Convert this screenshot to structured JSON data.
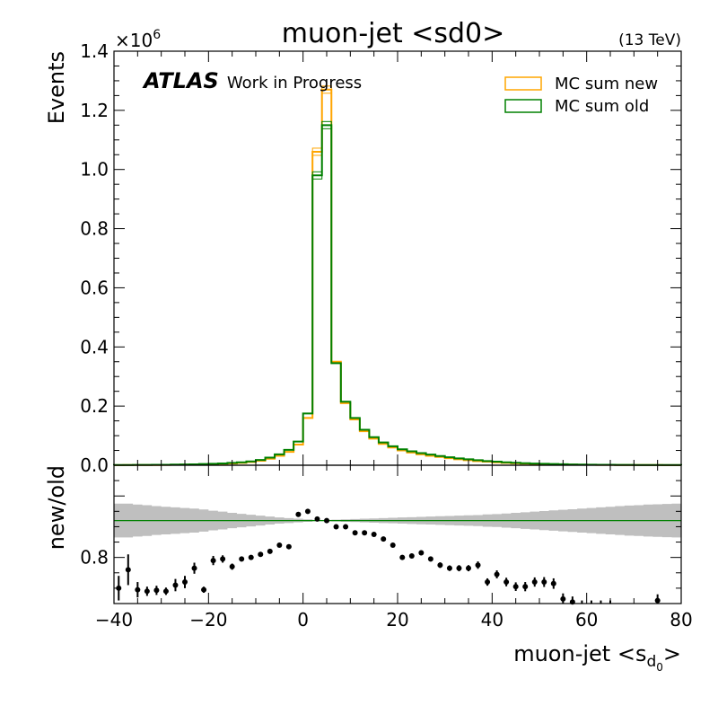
{
  "chart_data": {
    "type": "histogram-ratio",
    "title": "muon-jet <sd0>",
    "energy_label": "(13 TeV)",
    "atlas_label": "ATLAS",
    "atlas_sublabel": "Work in Progress",
    "xlabel": "muon-jet <s",
    "xlabel_sub": "d",
    "xlabel_subsub": "0",
    "xlabel_close": ">",
    "xlim": [
      -40,
      80
    ],
    "bin_width": 2,
    "x_ticks": [
      "−40",
      "−20",
      "0",
      "20",
      "40",
      "60",
      "80"
    ],
    "main": {
      "ylabel": "Events",
      "ylim": [
        0,
        1.4
      ],
      "scale_label": "×10",
      "scale_exp": "6",
      "y_ticks": [
        "0.0",
        "0.2",
        "0.4",
        "0.6",
        "0.8",
        "1.0",
        "1.2",
        "1.4"
      ],
      "legend_position": "top-right",
      "series": [
        {
          "name": "MC sum new",
          "color": "#ffa500",
          "values": [
            0.0005,
            0.0006,
            0.0007,
            0.0008,
            0.0009,
            0.001,
            0.0015,
            0.002,
            0.0025,
            0.003,
            0.004,
            0.005,
            0.006,
            0.008,
            0.011,
            0.015,
            0.022,
            0.032,
            0.045,
            0.07,
            0.16,
            1.06,
            1.27,
            0.35,
            0.21,
            0.155,
            0.115,
            0.09,
            0.072,
            0.06,
            0.05,
            0.043,
            0.037,
            0.032,
            0.028,
            0.024,
            0.02,
            0.017,
            0.014,
            0.012,
            0.01,
            0.008,
            0.0065,
            0.0055,
            0.0045,
            0.0037,
            0.003,
            0.0025,
            0.002,
            0.0017,
            0.0014,
            0.0012,
            0.001,
            0.0009,
            0.0008,
            0.0007,
            0.0006,
            0.0006,
            0.0005,
            0.0005
          ]
        },
        {
          "name": "MC sum old",
          "color": "#008000",
          "values": [
            0.0007,
            0.0008,
            0.001,
            0.0012,
            0.0014,
            0.0017,
            0.0021,
            0.0026,
            0.0032,
            0.004,
            0.005,
            0.006,
            0.008,
            0.01,
            0.013,
            0.018,
            0.026,
            0.037,
            0.052,
            0.08,
            0.175,
            0.98,
            1.15,
            0.345,
            0.215,
            0.16,
            0.12,
            0.095,
            0.077,
            0.064,
            0.054,
            0.047,
            0.041,
            0.036,
            0.031,
            0.027,
            0.023,
            0.02,
            0.017,
            0.014,
            0.012,
            0.01,
            0.0083,
            0.007,
            0.0058,
            0.0048,
            0.004,
            0.0033,
            0.0027,
            0.0023,
            0.0019,
            0.0016,
            0.0014,
            0.0012,
            0.001,
            0.0009,
            0.0008,
            0.0007,
            0.0006,
            0.0006
          ]
        }
      ]
    },
    "ratio": {
      "ylabel": "new/old",
      "ylim": [
        0.65,
        1.1
      ],
      "y_ticks": [
        0.8
      ],
      "y_tick_labels": [
        "0.8"
      ],
      "reference_line": 0.92,
      "reference_color": "#008000",
      "band_color": "#bfbfbf",
      "band_halfwidth": [
        0.055,
        0.055,
        0.052,
        0.05,
        0.047,
        0.045,
        0.043,
        0.041,
        0.039,
        0.036,
        0.032,
        0.029,
        0.025,
        0.022,
        0.019,
        0.016,
        0.013,
        0.01,
        0.008,
        0.006,
        0.004,
        0.002,
        0.002,
        0.003,
        0.004,
        0.005,
        0.006,
        0.007,
        0.008,
        0.009,
        0.01,
        0.011,
        0.012,
        0.013,
        0.014,
        0.015,
        0.016,
        0.017,
        0.018,
        0.02,
        0.021,
        0.023,
        0.025,
        0.027,
        0.029,
        0.031,
        0.033,
        0.035,
        0.037,
        0.039,
        0.041,
        0.043,
        0.045,
        0.047,
        0.049,
        0.05,
        0.052,
        0.053,
        0.054,
        0.055
      ],
      "points": [
        {
          "x": -39,
          "y": 0.7,
          "err": 0.04
        },
        {
          "x": -37,
          "y": 0.76,
          "err": 0.05
        },
        {
          "x": -35,
          "y": 0.695,
          "err": 0.025
        },
        {
          "x": -33,
          "y": 0.69,
          "err": 0.015
        },
        {
          "x": -31,
          "y": 0.693,
          "err": 0.015
        },
        {
          "x": -29,
          "y": 0.69,
          "err": 0.012
        },
        {
          "x": -27,
          "y": 0.71,
          "err": 0.02
        },
        {
          "x": -25,
          "y": 0.72,
          "err": 0.02
        },
        {
          "x": -23,
          "y": 0.765,
          "err": 0.018
        },
        {
          "x": -21,
          "y": 0.695,
          "err": 0.01
        },
        {
          "x": -19,
          "y": 0.79,
          "err": 0.015
        },
        {
          "x": -17,
          "y": 0.795,
          "err": 0.012
        },
        {
          "x": -15,
          "y": 0.77,
          "err": 0.01
        },
        {
          "x": -13,
          "y": 0.795,
          "err": 0.008
        },
        {
          "x": -11,
          "y": 0.8,
          "err": 0.007
        },
        {
          "x": -9,
          "y": 0.81,
          "err": 0.006
        },
        {
          "x": -7,
          "y": 0.82,
          "err": 0.005
        },
        {
          "x": -5,
          "y": 0.84,
          "err": 0.004
        },
        {
          "x": -3,
          "y": 0.835,
          "err": 0.003
        },
        {
          "x": -1,
          "y": 0.94,
          "err": 0.002
        },
        {
          "x": 1,
          "y": 0.95,
          "err": 0.002
        },
        {
          "x": 3,
          "y": 0.925,
          "err": 0.002
        },
        {
          "x": 5,
          "y": 0.92,
          "err": 0.003
        },
        {
          "x": 7,
          "y": 0.9,
          "err": 0.003
        },
        {
          "x": 9,
          "y": 0.9,
          "err": 0.004
        },
        {
          "x": 11,
          "y": 0.88,
          "err": 0.004
        },
        {
          "x": 13,
          "y": 0.88,
          "err": 0.005
        },
        {
          "x": 15,
          "y": 0.875,
          "err": 0.005
        },
        {
          "x": 17,
          "y": 0.86,
          "err": 0.006
        },
        {
          "x": 19,
          "y": 0.84,
          "err": 0.006
        },
        {
          "x": 21,
          "y": 0.8,
          "err": 0.007
        },
        {
          "x": 23,
          "y": 0.805,
          "err": 0.007
        },
        {
          "x": 25,
          "y": 0.815,
          "err": 0.008
        },
        {
          "x": 27,
          "y": 0.795,
          "err": 0.008
        },
        {
          "x": 29,
          "y": 0.775,
          "err": 0.009
        },
        {
          "x": 31,
          "y": 0.765,
          "err": 0.009
        },
        {
          "x": 33,
          "y": 0.765,
          "err": 0.01
        },
        {
          "x": 35,
          "y": 0.765,
          "err": 0.01
        },
        {
          "x": 37,
          "y": 0.775,
          "err": 0.012
        },
        {
          "x": 39,
          "y": 0.72,
          "err": 0.012
        },
        {
          "x": 41,
          "y": 0.745,
          "err": 0.013
        },
        {
          "x": 43,
          "y": 0.72,
          "err": 0.014
        },
        {
          "x": 45,
          "y": 0.705,
          "err": 0.014
        },
        {
          "x": 47,
          "y": 0.705,
          "err": 0.015
        },
        {
          "x": 49,
          "y": 0.72,
          "err": 0.015
        },
        {
          "x": 51,
          "y": 0.72,
          "err": 0.016
        },
        {
          "x": 53,
          "y": 0.715,
          "err": 0.017
        },
        {
          "x": 55,
          "y": 0.665,
          "err": 0.018
        },
        {
          "x": 57,
          "y": 0.655,
          "err": 0.018
        },
        {
          "x": 59,
          "y": 0.64,
          "err": 0.02
        },
        {
          "x": 61,
          "y": 0.64,
          "err": 0.02
        },
        {
          "x": 63,
          "y": 0.64,
          "err": 0.02
        },
        {
          "x": 65,
          "y": 0.64,
          "err": 0.02
        },
        {
          "x": 75,
          "y": 0.66,
          "err": 0.02
        }
      ]
    }
  }
}
